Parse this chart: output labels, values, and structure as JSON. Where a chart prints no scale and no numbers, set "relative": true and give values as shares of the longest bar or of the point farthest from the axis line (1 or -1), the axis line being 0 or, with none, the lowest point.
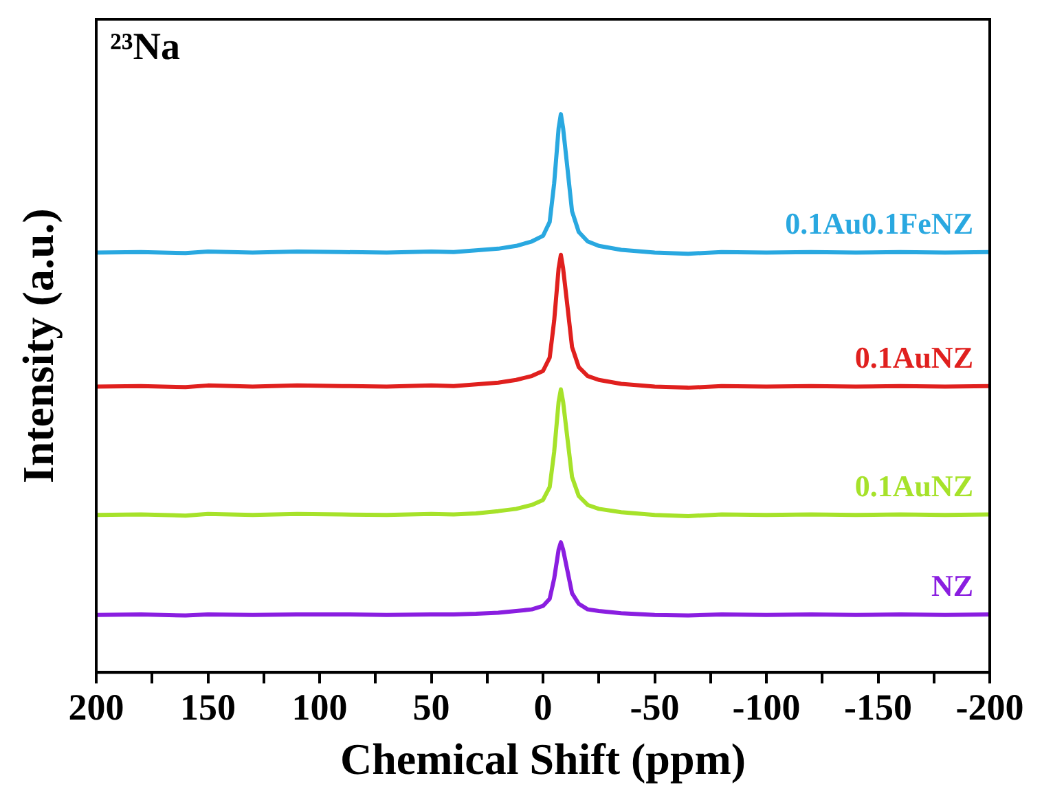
{
  "chart_data": {
    "type": "line",
    "relative": true,
    "xlabel": "Chemical Shift (ppm)",
    "ylabel": "Intensity (a.u.)",
    "annotations": [
      "²³Na"
    ],
    "x": [
      200,
      180,
      160,
      150,
      130,
      110,
      90,
      70,
      50,
      40,
      30,
      20,
      12,
      5,
      0,
      -3,
      -5,
      -7,
      -8,
      -9,
      -11,
      -13,
      -16,
      -20,
      -25,
      -35,
      -50,
      -65,
      -80,
      -100,
      -120,
      -140,
      -160,
      -180,
      -200
    ],
    "xlim": [
      200,
      -200
    ],
    "xticks": [
      200,
      {
        "value": 175,
        "label": null
      },
      150,
      {
        "value": 125,
        "label": null
      },
      100,
      {
        "value": 75,
        "label": null
      },
      50,
      {
        "value": 25,
        "label": null
      },
      0,
      {
        "value": -25,
        "label": null
      },
      -50,
      {
        "value": -75,
        "label": null
      },
      -100,
      {
        "value": -125,
        "label": null
      },
      -150,
      {
        "value": -175,
        "label": null
      },
      -200
    ],
    "grid": false,
    "legend": false,
    "tick_labels": "x",
    "marker": "none",
    "line_style": "solid",
    "series": [
      {
        "name": "0.1Au0.1FeNZ",
        "color": "#29a8e0",
        "values": [
          0.752,
          0.753,
          0.751,
          0.754,
          0.752,
          0.754,
          0.753,
          0.752,
          0.754,
          0.753,
          0.756,
          0.759,
          0.764,
          0.772,
          0.782,
          0.807,
          0.876,
          0.975,
          1,
          0.975,
          0.901,
          0.826,
          0.789,
          0.772,
          0.764,
          0.757,
          0.752,
          0.75,
          0.753,
          0.752,
          0.753,
          0.752,
          0.753,
          0.752,
          0.753
        ]
      },
      {
        "name": "0.1AuNZ",
        "color": "#e0201e",
        "values": [
          0.512,
          0.513,
          0.511,
          0.514,
          0.512,
          0.514,
          0.513,
          0.512,
          0.514,
          0.513,
          0.516,
          0.519,
          0.524,
          0.531,
          0.54,
          0.564,
          0.63,
          0.724,
          0.748,
          0.724,
          0.654,
          0.583,
          0.547,
          0.531,
          0.524,
          0.517,
          0.512,
          0.51,
          0.513,
          0.512,
          0.513,
          0.512,
          0.513,
          0.512,
          0.513
        ]
      },
      {
        "name": "0.1AuNZ",
        "color": "#a6e22a",
        "values": [
          0.282,
          0.283,
          0.281,
          0.284,
          0.282,
          0.284,
          0.283,
          0.282,
          0.284,
          0.283,
          0.285,
          0.289,
          0.293,
          0.3,
          0.309,
          0.332,
          0.395,
          0.485,
          0.507,
          0.485,
          0.417,
          0.35,
          0.316,
          0.3,
          0.293,
          0.287,
          0.282,
          0.28,
          0.283,
          0.282,
          0.283,
          0.282,
          0.283,
          0.282,
          0.283
        ]
      },
      {
        "name": "NZ",
        "color": "#8a1ee0",
        "values": [
          0.103,
          0.104,
          0.102,
          0.104,
          0.103,
          0.104,
          0.104,
          0.103,
          0.104,
          0.104,
          0.105,
          0.107,
          0.11,
          0.113,
          0.119,
          0.132,
          0.168,
          0.22,
          0.233,
          0.22,
          0.181,
          0.142,
          0.123,
          0.113,
          0.11,
          0.106,
          0.103,
          0.102,
          0.104,
          0.103,
          0.104,
          0.103,
          0.104,
          0.103,
          0.104
        ]
      }
    ]
  }
}
